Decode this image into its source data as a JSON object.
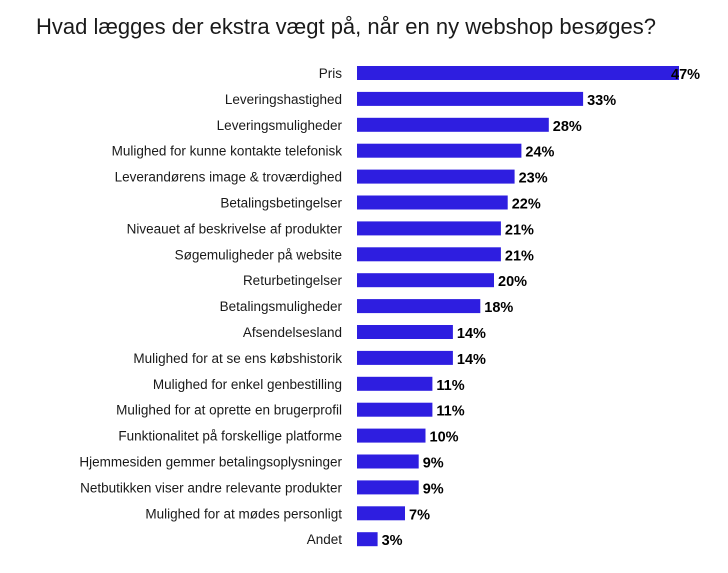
{
  "chart_data": {
    "type": "bar",
    "orientation": "horizontal",
    "title": "Hvad lægges der ekstra vægt på, når en ny webshop besøges?",
    "categories": [
      "Pris",
      "Leveringshastighed",
      "Leveringsmuligheder",
      "Mulighed for kunne kontakte telefonisk",
      "Leverandørens image & troværdighed",
      "Betalingsbetingelser",
      "Niveauet af beskrivelse af produkter",
      "Søgemuligheder på website",
      "Returbetingelser",
      "Betalingsmuligheder",
      "Afsendelsesland",
      "Mulighed for at se ens købshistorik",
      "Mulighed for enkel genbestilling",
      "Mulighed for at oprette en brugerprofil",
      "Funktionalitet på forskellige platforme",
      "Hjemmesiden gemmer betalingsoplysninger",
      "Netbutikken viser andre relevante produkter",
      "Mulighed for at mødes personligt",
      "Andet"
    ],
    "values": [
      47,
      33,
      28,
      24,
      23,
      22,
      21,
      21,
      20,
      18,
      14,
      14,
      11,
      11,
      10,
      9,
      9,
      7,
      3
    ],
    "value_labels": [
      "47%",
      "33%",
      "28%",
      "24%",
      "23%",
      "22%",
      "21%",
      "21%",
      "20%",
      "18%",
      "14%",
      "14%",
      "11%",
      "11%",
      "10%",
      "9%",
      "9%",
      "7%",
      "3%"
    ],
    "unit": "%",
    "xlim": [
      0,
      47
    ],
    "bar_color": "#2e1ee0",
    "grid": false,
    "legend": "none"
  }
}
